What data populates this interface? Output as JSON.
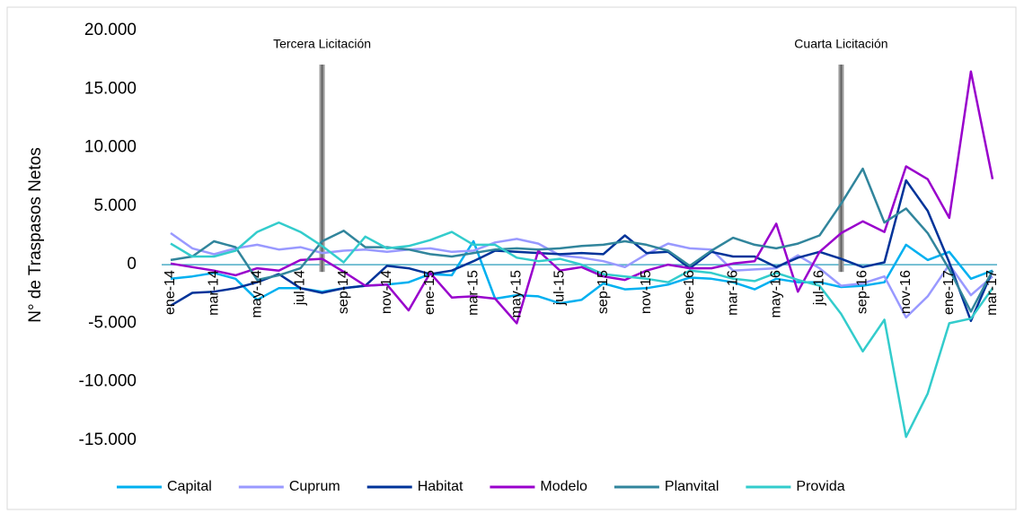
{
  "chart_data": {
    "type": "line",
    "y_label": "N° de Traspasos Netos",
    "categories": [
      "ene-14",
      null,
      "mar-14",
      null,
      "may-14",
      null,
      "jul-14",
      null,
      "sep-14",
      null,
      "nov-14",
      null,
      "ene-15",
      null,
      "mar-15",
      null,
      "may-15",
      null,
      "jul-15",
      null,
      "sep-15",
      null,
      "nov-15",
      null,
      "ene-16",
      null,
      "mar-16",
      null,
      "may-16",
      null,
      "jul-16",
      null,
      "sep-16",
      null,
      "nov-16",
      null,
      "ene-17",
      null,
      "mar-17"
    ],
    "series": [
      {
        "name": "Capital",
        "color": "#00b0f0",
        "values": [
          -1200,
          -1000,
          -700,
          -1200,
          -3000,
          -2000,
          -2000,
          -2300,
          -2000,
          -1800,
          -1700,
          -1500,
          -800,
          -900,
          2000,
          -2900,
          -2600,
          -2700,
          -3300,
          -3000,
          -1600,
          -2100,
          -2000,
          -1700,
          -1100,
          -1200,
          -1500,
          -2100,
          -1200,
          -1500,
          -1500,
          -1900,
          -1800,
          -1500,
          1700,
          400,
          1100,
          -1200,
          -500
        ]
      },
      {
        "name": "Cuprum",
        "color": "#9999ff",
        "values": [
          2700,
          1400,
          900,
          1400,
          1700,
          1300,
          1500,
          1000,
          1200,
          1300,
          1100,
          1300,
          1400,
          1100,
          1200,
          1900,
          2200,
          1800,
          800,
          600,
          300,
          -200,
          900,
          1800,
          1400,
          1300,
          -500,
          -400,
          -300,
          800,
          -300,
          -1800,
          -1600,
          -1000,
          -4500,
          -2700,
          0,
          -2600,
          -1000
        ]
      },
      {
        "name": "Habitat",
        "color": "#003399",
        "values": [
          -3500,
          -2400,
          -2300,
          -2000,
          -1500,
          -800,
          -2000,
          -2400,
          -2000,
          -1800,
          -100,
          -300,
          -800,
          -500,
          300,
          1200,
          1100,
          1000,
          900,
          1000,
          900,
          2500,
          1000,
          1100,
          -300,
          1100,
          700,
          700,
          -200,
          600,
          1100,
          500,
          -200,
          200,
          7200,
          4600,
          200,
          -4800,
          -500
        ]
      },
      {
        "name": "Modelo",
        "color": "#9900cc",
        "values": [
          100,
          -200,
          -500,
          -900,
          -300,
          -500,
          400,
          500,
          -600,
          -1800,
          -1700,
          -3900,
          -700,
          -2800,
          -2700,
          -2900,
          -5000,
          1200,
          -500,
          -200,
          -1000,
          -1300,
          -500,
          0,
          -300,
          -300,
          100,
          300,
          3500,
          -2300,
          1100,
          2700,
          3700,
          2800,
          8400,
          7300,
          4000,
          16500,
          7300
        ]
      },
      {
        "name": "Planvital",
        "color": "#31859c",
        "values": [
          400,
          700,
          2000,
          1500,
          -1300,
          -900,
          -300,
          2000,
          2900,
          1500,
          1500,
          1300,
          900,
          700,
          1000,
          1300,
          1400,
          1300,
          1400,
          1600,
          1700,
          2000,
          1700,
          1200,
          -100,
          1200,
          2300,
          1700,
          1400,
          1800,
          2500,
          5200,
          8200,
          3600,
          4800,
          2700,
          -400,
          -4000,
          -500
        ]
      },
      {
        "name": "Provida",
        "color": "#33cccc",
        "values": [
          1800,
          700,
          700,
          1200,
          2800,
          3600,
          2800,
          1600,
          200,
          2400,
          1400,
          1600,
          2100,
          2800,
          1700,
          1700,
          600,
          300,
          500,
          0,
          -800,
          -1000,
          -1200,
          -1500,
          -500,
          -700,
          -1200,
          -1400,
          -700,
          -1300,
          -1800,
          -4200,
          -7400,
          -4700,
          -14700,
          -11000,
          -5000,
          -4600,
          -2000
        ]
      }
    ],
    "annotations": [
      {
        "text": "Tercera Licitación",
        "x": 7
      },
      {
        "text": "Cuarta Licitación",
        "x": 31
      }
    ],
    "ylim": [
      -15000,
      20000
    ],
    "yticks": [
      {
        "value": -15000,
        "label": "-15.000"
      },
      {
        "value": -10000,
        "label": "-10.000"
      },
      {
        "value": -5000,
        "label": "-5.000"
      },
      0,
      {
        "value": 5000,
        "label": "5.000"
      },
      {
        "value": 10000,
        "label": "10.000"
      },
      {
        "value": 15000,
        "label": "15.000"
      },
      {
        "value": 20000,
        "label": "20.000"
      }
    ],
    "grid": false,
    "legend": "bottom"
  }
}
